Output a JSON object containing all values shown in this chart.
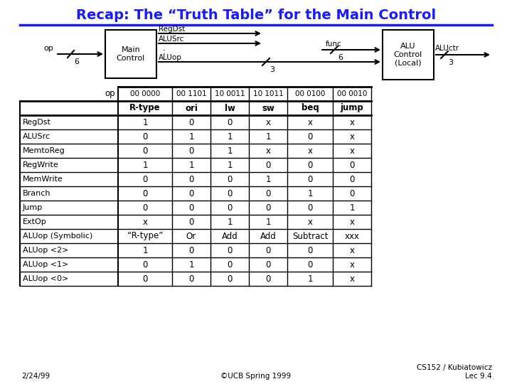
{
  "title": "Recap: The “Truth Table” for the Main Control",
  "title_color": "#1a1aff",
  "title_fontsize": 14,
  "bg_color": "#ffffff",
  "header_row": [
    "op",
    "00 0000",
    "00 1101",
    "10 0011",
    "10 1011",
    "00 0100",
    "00 0010"
  ],
  "subheader_row": [
    "",
    "R-type",
    "ori",
    "lw",
    "sw",
    "beq",
    "jump"
  ],
  "rows": [
    [
      "RegDst",
      "1",
      "0",
      "0",
      "x",
      "x",
      "x"
    ],
    [
      "ALUSrc",
      "0",
      "1",
      "1",
      "1",
      "0",
      "x"
    ],
    [
      "MemtoReg",
      "0",
      "0",
      "1",
      "x",
      "x",
      "x"
    ],
    [
      "RegWrite",
      "1",
      "1",
      "1",
      "0",
      "0",
      "0"
    ],
    [
      "MemWrite",
      "0",
      "0",
      "0",
      "1",
      "0",
      "0"
    ],
    [
      "Branch",
      "0",
      "0",
      "0",
      "0",
      "1",
      "0"
    ],
    [
      "Jump",
      "0",
      "0",
      "0",
      "0",
      "0",
      "1"
    ],
    [
      "ExtOp",
      "x",
      "0",
      "1",
      "1",
      "x",
      "x"
    ],
    [
      "ALUop (Symbolic)",
      "“R-type”",
      "Or",
      "Add",
      "Add",
      "Subtract",
      "xxx"
    ],
    [
      "ALUop <2>",
      "1",
      "0",
      "0",
      "0",
      "0",
      "x"
    ],
    [
      "ALUop <1>",
      "0",
      "1",
      "0",
      "0",
      "0",
      "x"
    ],
    [
      "ALUop <0>",
      "0",
      "0",
      "0",
      "0",
      "1",
      "x"
    ]
  ],
  "footer_left": "2/24/99",
  "footer_center": "©UCB Spring 1999",
  "footer_right": "CS152 / Kubiatowicz\nLec 9.4",
  "diagram": {
    "op_label": "op",
    "op_bits": "6",
    "main_control_label": "Main\nControl",
    "aluop_bits": "3",
    "func_label": "func",
    "func_bits": "6",
    "alu_control_label": "ALU\nControl\n(Local)",
    "aluctr_label": "ALUctr",
    "aluctr_bits": "3"
  }
}
